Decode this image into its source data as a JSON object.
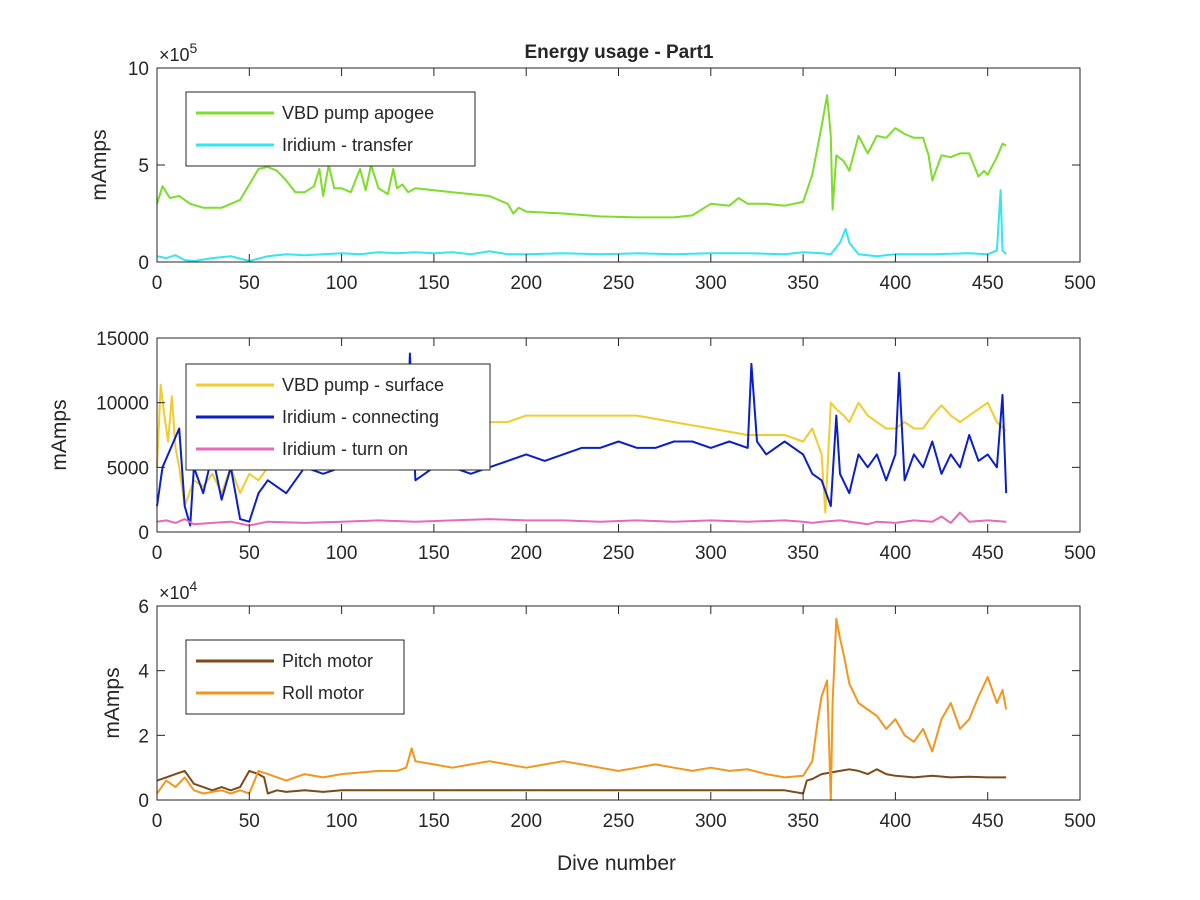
{
  "figure": {
    "title": "Energy usage - Part1"
  },
  "chart_data": [
    {
      "type": "line",
      "title": "Energy usage - Part1",
      "xlabel": "",
      "ylabel": "mAmps",
      "xlim": [
        0,
        500
      ],
      "ylim": [
        0,
        1000000
      ],
      "x_ticks": [
        "0",
        "50",
        "100",
        "150",
        "200",
        "250",
        "300",
        "350",
        "400",
        "450",
        "500"
      ],
      "y_ticks": [
        "0",
        "5",
        "10"
      ],
      "y_tick_values": [
        0,
        500000,
        1000000
      ],
      "exponent_label": {
        "base": "×10",
        "power": "5"
      },
      "legend_position": "top-left",
      "grid": false,
      "series": [
        {
          "name": "VBD pump apogee",
          "color": "#7cdd2b",
          "x": [
            0,
            3,
            7,
            12,
            18,
            25,
            35,
            45,
            50,
            55,
            60,
            65,
            70,
            75,
            80,
            85,
            88,
            90,
            93,
            96,
            100,
            105,
            110,
            113,
            116,
            120,
            125,
            128,
            130,
            133,
            136,
            140,
            150,
            160,
            170,
            180,
            190,
            193,
            196,
            200,
            220,
            240,
            260,
            280,
            290,
            300,
            310,
            315,
            320,
            330,
            340,
            350,
            355,
            360,
            363,
            365,
            366,
            368,
            372,
            375,
            380,
            385,
            390,
            395,
            400,
            405,
            410,
            415,
            418,
            420,
            425,
            430,
            435,
            440,
            445,
            448,
            450,
            455,
            458,
            460
          ],
          "values": [
            300000,
            390000,
            330000,
            340000,
            300000,
            280000,
            280000,
            320000,
            400000,
            480000,
            490000,
            470000,
            420000,
            360000,
            360000,
            390000,
            480000,
            340000,
            500000,
            380000,
            380000,
            360000,
            480000,
            370000,
            500000,
            380000,
            350000,
            480000,
            380000,
            400000,
            360000,
            380000,
            370000,
            360000,
            350000,
            340000,
            300000,
            250000,
            280000,
            260000,
            250000,
            235000,
            230000,
            230000,
            240000,
            300000,
            290000,
            330000,
            300000,
            300000,
            290000,
            310000,
            450000,
            700000,
            860000,
            650000,
            270000,
            550000,
            520000,
            470000,
            650000,
            560000,
            650000,
            640000,
            690000,
            660000,
            640000,
            640000,
            550000,
            420000,
            550000,
            540000,
            560000,
            560000,
            440000,
            470000,
            450000,
            540000,
            610000,
            600000
          ]
        },
        {
          "name": "Iridium - transfer",
          "color": "#33e6ef",
          "x": [
            0,
            5,
            10,
            15,
            20,
            30,
            40,
            50,
            60,
            70,
            80,
            90,
            100,
            110,
            120,
            130,
            140,
            150,
            160,
            170,
            180,
            190,
            200,
            220,
            240,
            260,
            280,
            300,
            320,
            340,
            350,
            360,
            365,
            370,
            373,
            375,
            380,
            390,
            400,
            420,
            440,
            450,
            455,
            457,
            458,
            460
          ],
          "values": [
            30000,
            20000,
            35000,
            10000,
            5000,
            20000,
            30000,
            5000,
            30000,
            40000,
            35000,
            40000,
            45000,
            40000,
            50000,
            45000,
            50000,
            45000,
            50000,
            40000,
            55000,
            40000,
            40000,
            45000,
            40000,
            45000,
            40000,
            45000,
            45000,
            40000,
            50000,
            45000,
            40000,
            100000,
            170000,
            100000,
            40000,
            30000,
            40000,
            40000,
            45000,
            40000,
            60000,
            370000,
            60000,
            40000
          ]
        }
      ]
    },
    {
      "type": "line",
      "title": "",
      "xlabel": "",
      "ylabel": "mAmps",
      "xlim": [
        0,
        500
      ],
      "ylim": [
        0,
        15000
      ],
      "x_ticks": [
        "0",
        "50",
        "100",
        "150",
        "200",
        "250",
        "300",
        "350",
        "400",
        "450",
        "500"
      ],
      "y_ticks": [
        "0",
        "5000",
        "10000",
        "15000"
      ],
      "y_tick_values": [
        0,
        5000,
        10000,
        15000
      ],
      "legend_position": "top-left",
      "grid": false,
      "series": [
        {
          "name": "VBD pump - surface",
          "color": "#f0cc2d",
          "x": [
            0,
            2,
            4,
            6,
            8,
            10,
            12,
            15,
            20,
            25,
            30,
            35,
            40,
            45,
            50,
            55,
            60,
            70,
            80,
            90,
            100,
            110,
            120,
            130,
            140,
            150,
            160,
            170,
            180,
            190,
            200,
            220,
            240,
            260,
            280,
            300,
            320,
            340,
            350,
            355,
            360,
            362,
            365,
            368,
            372,
            375,
            380,
            385,
            390,
            395,
            400,
            405,
            410,
            415,
            420,
            425,
            430,
            435,
            440,
            445,
            450,
            455,
            460
          ],
          "values": [
            5000,
            11400,
            9000,
            7000,
            10500,
            6500,
            5000,
            2000,
            4000,
            3500,
            4500,
            3000,
            5000,
            3000,
            4500,
            4000,
            5000,
            5500,
            6000,
            6000,
            6500,
            6000,
            6500,
            6500,
            7000,
            7500,
            8000,
            8000,
            8500,
            8500,
            9000,
            9000,
            9000,
            9000,
            8500,
            8000,
            7500,
            7500,
            7000,
            8000,
            6000,
            1500,
            10000,
            9500,
            9000,
            8500,
            10000,
            9000,
            8500,
            8000,
            8000,
            8500,
            8000,
            8000,
            9000,
            9800,
            9000,
            8500,
            9000,
            9500,
            10000,
            8500,
            7800
          ]
        },
        {
          "name": "Iridium - connecting",
          "color": "#0b1fc7",
          "x": [
            0,
            3,
            6,
            9,
            12,
            15,
            18,
            20,
            25,
            30,
            35,
            40,
            45,
            50,
            55,
            60,
            70,
            80,
            90,
            100,
            110,
            120,
            130,
            135,
            137,
            140,
            150,
            160,
            170,
            180,
            190,
            200,
            210,
            220,
            230,
            240,
            250,
            260,
            270,
            280,
            290,
            300,
            310,
            320,
            322,
            325,
            330,
            340,
            350,
            355,
            360,
            365,
            368,
            370,
            375,
            380,
            385,
            390,
            395,
            400,
            402,
            405,
            410,
            415,
            420,
            425,
            430,
            435,
            440,
            445,
            450,
            455,
            458,
            460
          ],
          "values": [
            2000,
            5000,
            6000,
            7000,
            8000,
            2000,
            500,
            5000,
            3000,
            6000,
            2500,
            5000,
            1000,
            800,
            3000,
            4000,
            3000,
            5000,
            4500,
            5000,
            5500,
            6000,
            6000,
            5000,
            13800,
            4000,
            5000,
            5000,
            4500,
            5000,
            5500,
            6000,
            5500,
            6000,
            6500,
            6500,
            7000,
            6500,
            6500,
            7000,
            7000,
            6500,
            7000,
            6500,
            13000,
            7000,
            6000,
            7000,
            6000,
            4500,
            4000,
            2000,
            9000,
            4500,
            3000,
            6000,
            5000,
            6000,
            4000,
            6000,
            12300,
            4000,
            6000,
            5000,
            7000,
            4500,
            6000,
            5000,
            7500,
            5500,
            6000,
            5000,
            10600,
            3000
          ]
        },
        {
          "name": "Iridium - turn on",
          "color": "#e66ab8",
          "x": [
            0,
            5,
            10,
            15,
            20,
            30,
            40,
            50,
            60,
            80,
            100,
            120,
            140,
            160,
            180,
            200,
            220,
            240,
            260,
            280,
            300,
            320,
            340,
            350,
            355,
            360,
            370,
            380,
            385,
            390,
            400,
            410,
            420,
            425,
            430,
            435,
            440,
            450,
            460
          ],
          "values": [
            800,
            900,
            700,
            1000,
            600,
            700,
            800,
            500,
            800,
            700,
            800,
            900,
            800,
            900,
            1000,
            900,
            900,
            800,
            900,
            800,
            900,
            800,
            900,
            800,
            700,
            800,
            900,
            700,
            600,
            800,
            700,
            900,
            800,
            1200,
            700,
            1500,
            800,
            900,
            800
          ]
        }
      ]
    },
    {
      "type": "line",
      "title": "",
      "xlabel": "Dive number",
      "ylabel": "mAmps",
      "xlim": [
        0,
        500
      ],
      "ylim": [
        0,
        60000
      ],
      "x_ticks": [
        "0",
        "50",
        "100",
        "150",
        "200",
        "250",
        "300",
        "350",
        "400",
        "450",
        "500"
      ],
      "y_ticks": [
        "0",
        "2",
        "4",
        "6"
      ],
      "y_tick_values": [
        0,
        20000,
        40000,
        60000
      ],
      "exponent_label": {
        "base": "×10",
        "power": "4"
      },
      "legend_position": "top-left",
      "grid": false,
      "series": [
        {
          "name": "Pitch motor",
          "color": "#7b4b19",
          "x": [
            0,
            5,
            10,
            15,
            20,
            25,
            30,
            35,
            40,
            45,
            50,
            55,
            58,
            60,
            65,
            70,
            80,
            90,
            100,
            120,
            140,
            160,
            180,
            200,
            220,
            240,
            260,
            280,
            300,
            320,
            340,
            350,
            352,
            355,
            360,
            365,
            370,
            375,
            380,
            385,
            390,
            395,
            400,
            410,
            420,
            430,
            440,
            450,
            460
          ],
          "values": [
            6000,
            7000,
            8000,
            9000,
            5000,
            4000,
            3000,
            4000,
            3000,
            4000,
            9000,
            8000,
            7000,
            2000,
            3000,
            2500,
            3000,
            2500,
            3000,
            3000,
            3000,
            3000,
            3000,
            3000,
            3000,
            3000,
            3000,
            3000,
            3000,
            3000,
            3000,
            2000,
            6000,
            6500,
            8000,
            8500,
            9000,
            9500,
            9000,
            8000,
            9500,
            8000,
            7500,
            7000,
            7500,
            7000,
            7200,
            7000,
            7000
          ]
        },
        {
          "name": "Roll motor",
          "color": "#f3961d",
          "x": [
            0,
            5,
            10,
            15,
            20,
            25,
            30,
            35,
            40,
            45,
            50,
            55,
            60,
            70,
            80,
            90,
            100,
            110,
            120,
            130,
            135,
            138,
            140,
            150,
            160,
            170,
            180,
            190,
            200,
            210,
            220,
            230,
            240,
            250,
            260,
            270,
            280,
            290,
            300,
            310,
            320,
            330,
            340,
            350,
            355,
            358,
            360,
            363,
            365,
            366,
            368,
            370,
            372,
            375,
            380,
            385,
            390,
            395,
            400,
            405,
            410,
            415,
            420,
            425,
            430,
            435,
            440,
            445,
            450,
            455,
            458,
            460
          ],
          "values": [
            2000,
            6000,
            4000,
            7000,
            3000,
            2000,
            2500,
            3000,
            2000,
            3000,
            2000,
            9000,
            8000,
            6000,
            8000,
            7000,
            8000,
            8500,
            9000,
            9000,
            10000,
            16000,
            12000,
            11000,
            10000,
            11000,
            12000,
            11000,
            10000,
            11000,
            12000,
            11000,
            10000,
            9000,
            10000,
            11000,
            10000,
            9000,
            10000,
            9000,
            9500,
            8000,
            7000,
            7500,
            12000,
            25000,
            32000,
            37000,
            0,
            30000,
            56000,
            50000,
            45000,
            36000,
            30000,
            28000,
            26000,
            22000,
            25000,
            20000,
            18000,
            22000,
            15000,
            25000,
            30000,
            22000,
            25000,
            32000,
            38000,
            30000,
            34000,
            28000
          ]
        }
      ]
    }
  ]
}
